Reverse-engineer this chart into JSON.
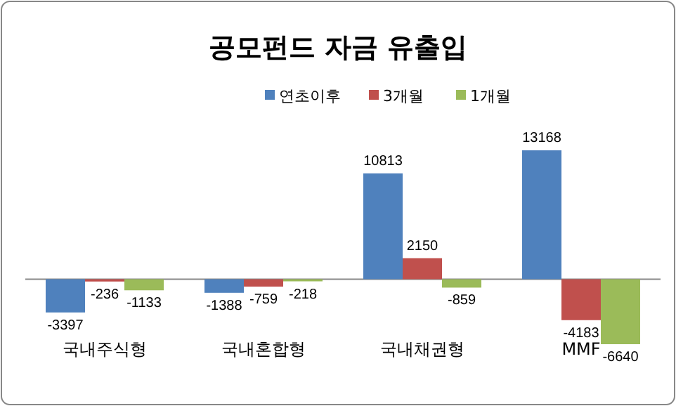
{
  "chart_data": {
    "type": "bar",
    "title": "공모펀드 자금 유출입",
    "categories": [
      "국내주식형",
      "국내혼합형",
      "국내채권형",
      "MMF"
    ],
    "series": [
      {
        "name": "연초이후",
        "color": "#4f81bd",
        "values": [
          -3397,
          -1388,
          10813,
          13168
        ]
      },
      {
        "name": "3개월",
        "color": "#c0504d",
        "values": [
          -236,
          -759,
          2150,
          -4183
        ]
      },
      {
        "name": "1개월",
        "color": "#9bbb59",
        "values": [
          -1133,
          -218,
          -859,
          -6640
        ]
      }
    ],
    "data_labels": true,
    "legend": "top"
  }
}
